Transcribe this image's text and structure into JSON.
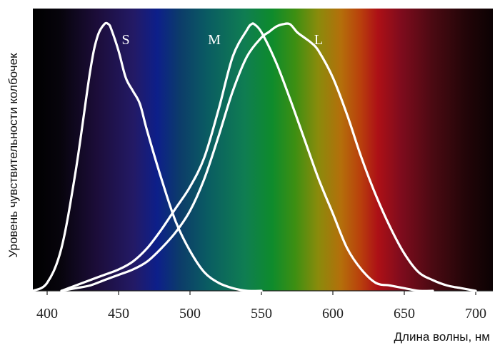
{
  "chart_data": {
    "type": "line",
    "title": "",
    "xlabel": "Длина волны, нм",
    "ylabel": "Уровень чувствительности колбочек",
    "xlim": [
      390,
      712
    ],
    "ylim": [
      0,
      1
    ],
    "xticks": [
      400,
      450,
      500,
      550,
      600,
      650,
      700
    ],
    "grid": false,
    "legend": "none",
    "background": "visible spectrum gradient",
    "line_color": "#ffffff",
    "series": [
      {
        "name": "S",
        "x": [
          390,
          400,
          410,
          420,
          430,
          435,
          440,
          443,
          445,
          450,
          455,
          460,
          465,
          470,
          480,
          490,
          500,
          510,
          520,
          530,
          540,
          550
        ],
        "y": [
          0.0,
          0.03,
          0.16,
          0.45,
          0.82,
          0.95,
          1.0,
          1.0,
          0.98,
          0.9,
          0.8,
          0.75,
          0.7,
          0.6,
          0.42,
          0.26,
          0.15,
          0.07,
          0.03,
          0.01,
          0.0,
          0.0
        ]
      },
      {
        "name": "M",
        "x": [
          410,
          420,
          430,
          440,
          450,
          460,
          470,
          480,
          490,
          500,
          510,
          520,
          530,
          540,
          543,
          545,
          550,
          560,
          570,
          580,
          590,
          600,
          610,
          620,
          630,
          640,
          650,
          660,
          670
        ],
        "y": [
          0.0,
          0.02,
          0.04,
          0.06,
          0.08,
          0.11,
          0.16,
          0.23,
          0.31,
          0.39,
          0.5,
          0.68,
          0.88,
          0.98,
          1.0,
          1.0,
          0.97,
          0.86,
          0.72,
          0.57,
          0.42,
          0.29,
          0.16,
          0.08,
          0.03,
          0.02,
          0.01,
          0.0,
          0.0
        ]
      },
      {
        "name": "L",
        "x": [
          410,
          420,
          430,
          440,
          450,
          460,
          470,
          480,
          490,
          500,
          510,
          520,
          530,
          540,
          550,
          555,
          560,
          565,
          570,
          575,
          580,
          585,
          590,
          600,
          610,
          620,
          630,
          640,
          650,
          660,
          670,
          680,
          690,
          700
        ],
        "y": [
          0.0,
          0.01,
          0.02,
          0.04,
          0.06,
          0.08,
          0.11,
          0.16,
          0.22,
          0.3,
          0.42,
          0.58,
          0.75,
          0.88,
          0.95,
          0.97,
          0.99,
          1.0,
          1.0,
          0.97,
          0.95,
          0.93,
          0.9,
          0.8,
          0.66,
          0.5,
          0.36,
          0.24,
          0.14,
          0.07,
          0.04,
          0.02,
          0.01,
          0.0
        ]
      }
    ]
  }
}
